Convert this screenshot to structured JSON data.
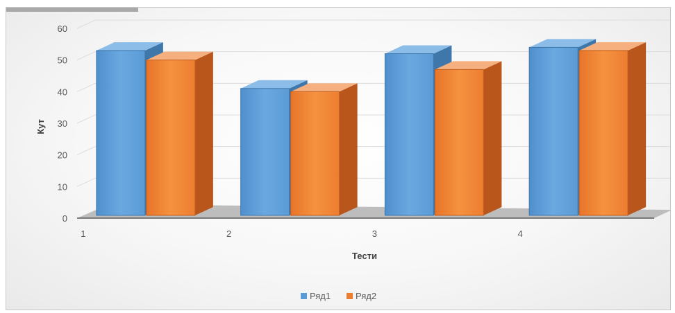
{
  "chart_data": {
    "type": "bar",
    "style": "3d-clustered-column",
    "categories": [
      "1",
      "2",
      "3",
      "4"
    ],
    "series": [
      {
        "name": "Ряд1",
        "values": [
          53,
          41,
          52,
          54
        ],
        "color": "#5b9bd5"
      },
      {
        "name": "Ряд2",
        "values": [
          50,
          40,
          47,
          53
        ],
        "color": "#ed7d31"
      }
    ],
    "xlabel": "Тести",
    "ylabel": "Кут",
    "ylim": [
      0,
      60
    ],
    "yticks": [
      "0",
      "10",
      "20",
      "30",
      "40",
      "50",
      "60"
    ],
    "grid": true,
    "legend_position": "bottom",
    "floor_color": "#bdbdbd"
  }
}
